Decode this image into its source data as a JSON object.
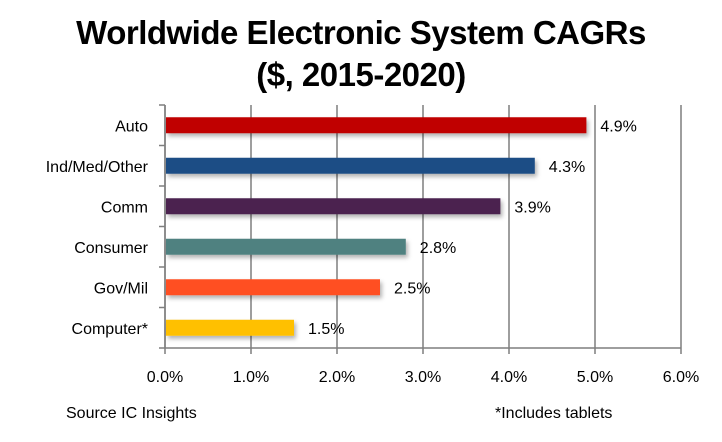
{
  "chart_data": {
    "type": "bar",
    "orientation": "horizontal",
    "title": "Worldwide Electronic System CAGRs",
    "subtitle": "($, 2015-2020)",
    "categories": [
      "Auto",
      "Ind/Med/Other",
      "Comm",
      "Consumer",
      "Gov/Mil",
      "Computer*"
    ],
    "values": [
      4.9,
      4.3,
      3.9,
      2.8,
      2.5,
      1.5
    ],
    "value_labels": [
      "4.9%",
      "4.3%",
      "3.9%",
      "2.8%",
      "2.5%",
      "1.5%"
    ],
    "colors": [
      "#C00000",
      "#1F4E85",
      "#4B2150",
      "#4F8180",
      "#FF5023",
      "#FFC000"
    ],
    "xlabel": "",
    "ylabel": "",
    "xlim": [
      0,
      6
    ],
    "x_ticks": [
      "0.0%",
      "1.0%",
      "2.0%",
      "3.0%",
      "4.0%",
      "5.0%",
      "6.0%"
    ],
    "grid": "vertical",
    "legend": "none"
  },
  "footer": {
    "source": "Source  IC Insights",
    "note": "*Includes tablets"
  }
}
